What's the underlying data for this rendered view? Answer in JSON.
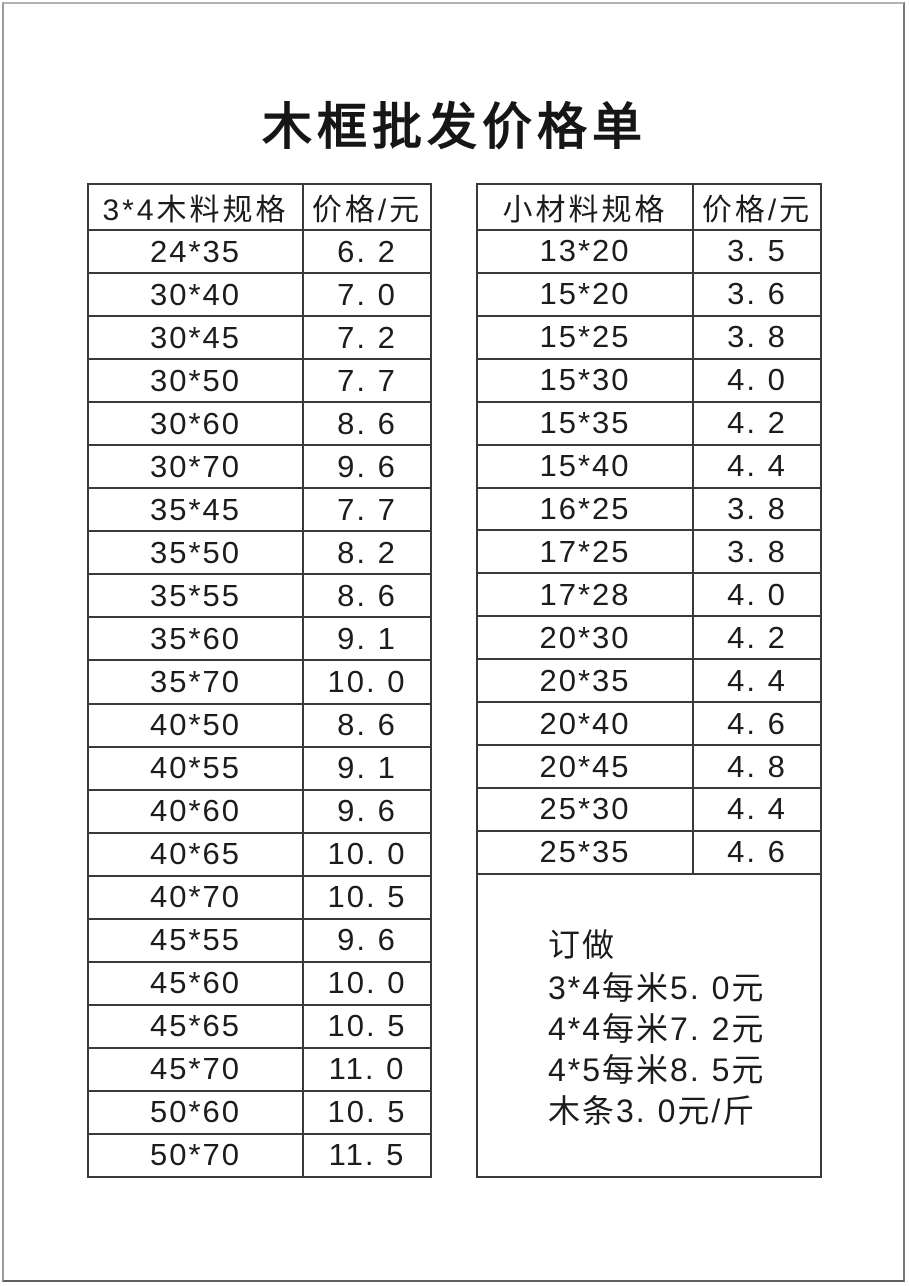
{
  "title": "木框批发价格单",
  "left_table": {
    "headers": [
      "3*4木料规格",
      "价格/元"
    ],
    "rows": [
      {
        "spec": "24*35",
        "price": "6. 2"
      },
      {
        "spec": "30*40",
        "price": "7. 0"
      },
      {
        "spec": "30*45",
        "price": "7. 2"
      },
      {
        "spec": "30*50",
        "price": "7. 7"
      },
      {
        "spec": "30*60",
        "price": "8. 6"
      },
      {
        "spec": "30*70",
        "price": "9. 6"
      },
      {
        "spec": "35*45",
        "price": "7. 7"
      },
      {
        "spec": "35*50",
        "price": "8. 2"
      },
      {
        "spec": "35*55",
        "price": "8. 6"
      },
      {
        "spec": "35*60",
        "price": "9. 1"
      },
      {
        "spec": "35*70",
        "price": "10. 0"
      },
      {
        "spec": "40*50",
        "price": "8. 6"
      },
      {
        "spec": "40*55",
        "price": "9. 1"
      },
      {
        "spec": "40*60",
        "price": "9. 6"
      },
      {
        "spec": "40*65",
        "price": "10. 0"
      },
      {
        "spec": "40*70",
        "price": "10. 5"
      },
      {
        "spec": "45*55",
        "price": "9. 6"
      },
      {
        "spec": "45*60",
        "price": "10. 0"
      },
      {
        "spec": "45*65",
        "price": "10. 5"
      },
      {
        "spec": "45*70",
        "price": "11. 0"
      },
      {
        "spec": "50*60",
        "price": "10. 5"
      },
      {
        "spec": "50*70",
        "price": "11. 5"
      }
    ]
  },
  "right_table": {
    "headers": [
      "小材料规格",
      "价格/元"
    ],
    "rows": [
      {
        "spec": "13*20",
        "price": "3. 5"
      },
      {
        "spec": "15*20",
        "price": "3. 6"
      },
      {
        "spec": "15*25",
        "price": "3. 8"
      },
      {
        "spec": "15*30",
        "price": "4. 0"
      },
      {
        "spec": "15*35",
        "price": "4. 2"
      },
      {
        "spec": "15*40",
        "price": "4. 4"
      },
      {
        "spec": "16*25",
        "price": "3. 8"
      },
      {
        "spec": "17*25",
        "price": "3. 8"
      },
      {
        "spec": "17*28",
        "price": "4. 0"
      },
      {
        "spec": "20*30",
        "price": "4. 2"
      },
      {
        "spec": "20*35",
        "price": "4. 4"
      },
      {
        "spec": "20*40",
        "price": "4. 6"
      },
      {
        "spec": "20*45",
        "price": "4. 8"
      },
      {
        "spec": "25*30",
        "price": "4. 4"
      },
      {
        "spec": "25*35",
        "price": "4. 6"
      }
    ]
  },
  "note": {
    "lines": [
      "订做",
      "3*4每米5. 0元",
      "4*4每米7. 2元",
      "4*5每米8. 5元",
      "木条3. 0元/斤"
    ]
  },
  "colors": {
    "table_border": "#3a3a3a",
    "page_border": "#9a9a9a",
    "text": "#1c1c1c",
    "background": "#ffffff"
  }
}
